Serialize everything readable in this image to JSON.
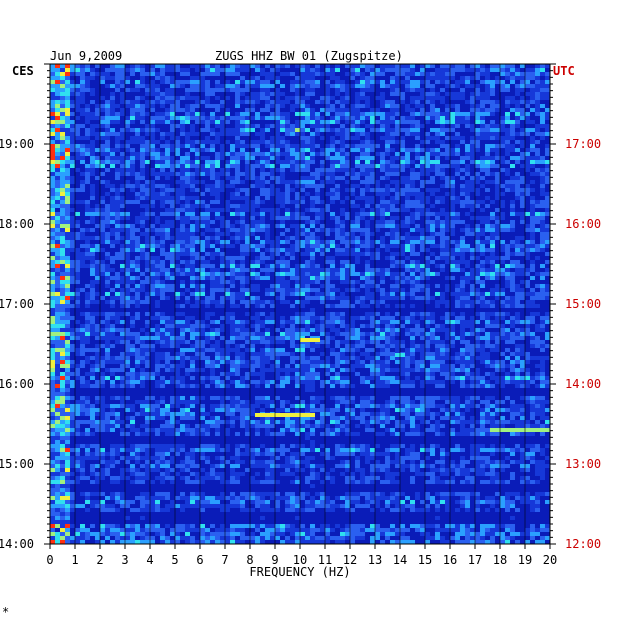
{
  "chart_data": {
    "type": "heatmap",
    "title": "ZUGS HHZ BW 01 (Zugspitze)",
    "date": "Jun 9,2009",
    "xlabel": "FREQUENCY (HZ)",
    "x_ticks": [
      "0",
      "1",
      "2",
      "3",
      "4",
      "5",
      "6",
      "7",
      "8",
      "9",
      "10",
      "11",
      "12",
      "13",
      "14",
      "15",
      "16",
      "17",
      "18",
      "19",
      "20"
    ],
    "xlim": [
      0,
      20
    ],
    "left_axis_label": "CES",
    "right_axis_label": "UTC",
    "left_time_ticks": [
      "19:00",
      "18:00",
      "17:00",
      "16:00",
      "15:00",
      "14:00"
    ],
    "right_time_ticks": [
      "17:00",
      "16:00",
      "15:00",
      "14:00",
      "13:00",
      "12:00"
    ],
    "time_range_local": [
      "14:00",
      "20:00"
    ],
    "corner_mark": "*",
    "colors": {
      "left_axis_text": "#000000",
      "right_axis_text": "#cc0000",
      "background_band": "#0020c0",
      "low_power": "#1030d0",
      "mid_power": "#20b0ff",
      "high_power": "#f0f040",
      "peak_power": "#ff2000",
      "grid_line": "#000000"
    }
  }
}
